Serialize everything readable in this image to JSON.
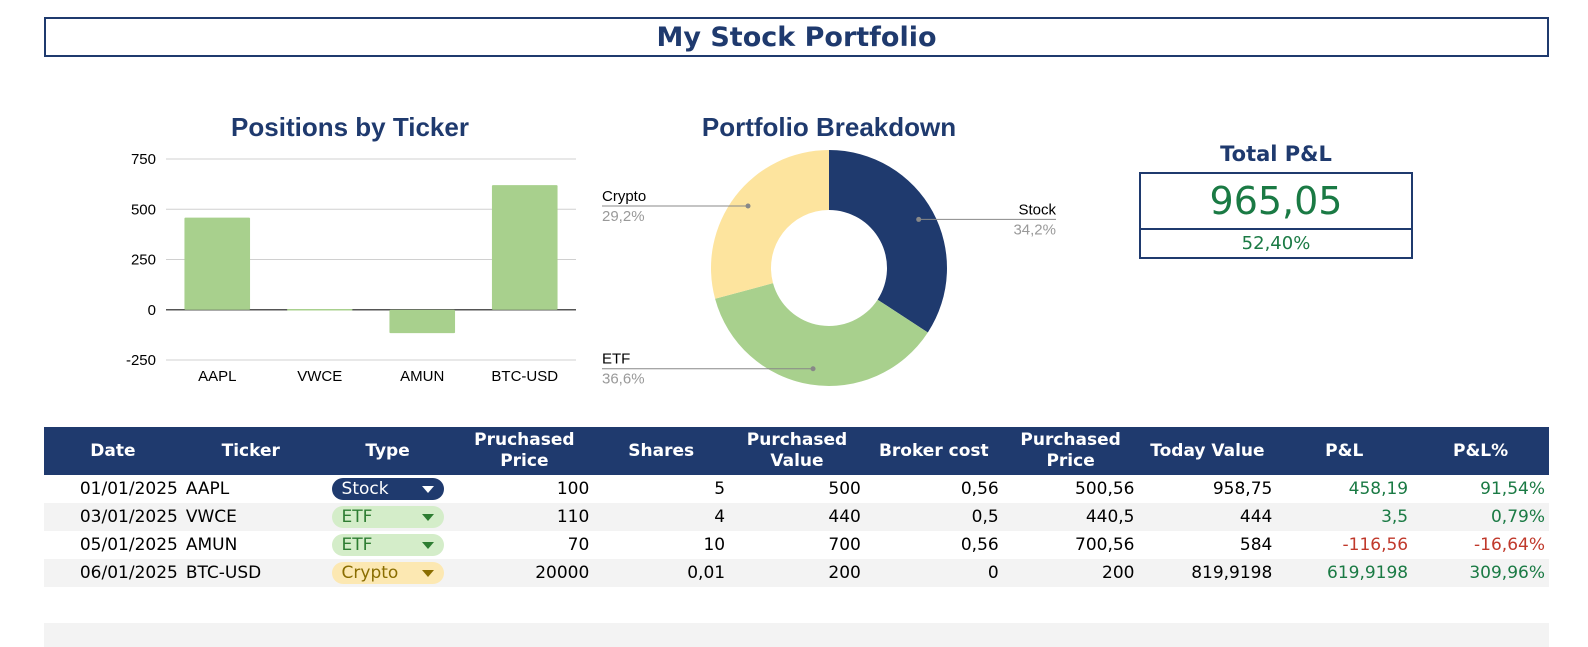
{
  "page": {
    "title": "My Stock Portfolio"
  },
  "total_pnl": {
    "title": "Total P&L",
    "value": "965,05",
    "percent": "52,40%"
  },
  "table": {
    "headers": [
      "Date",
      "Ticker",
      "Type",
      "Pruchased Price",
      "Shares",
      "Purchased Value",
      "Broker cost",
      "Purchased Price",
      "Today Value",
      "P&L",
      "P&L%"
    ],
    "rows": [
      {
        "date": "01/01/2025",
        "ticker": "AAPL",
        "type": "Stock",
        "price": "100",
        "shares": "5",
        "purchased_value": "500",
        "broker_cost": "0,56",
        "purchased_price_total": "500,56",
        "today_value": "958,75",
        "pnl": "458,19",
        "pnl_pct": "91,54%",
        "pnl_sign": "pos"
      },
      {
        "date": "03/01/2025",
        "ticker": "VWCE",
        "type": "ETF",
        "price": "110",
        "shares": "4",
        "purchased_value": "440",
        "broker_cost": "0,5",
        "purchased_price_total": "440,5",
        "today_value": "444",
        "pnl": "3,5",
        "pnl_pct": "0,79%",
        "pnl_sign": "pos"
      },
      {
        "date": "05/01/2025",
        "ticker": "AMUN",
        "type": "ETF",
        "price": "70",
        "shares": "10",
        "purchased_value": "700",
        "broker_cost": "0,56",
        "purchased_price_total": "700,56",
        "today_value": "584",
        "pnl": "-116,56",
        "pnl_pct": "-16,64%",
        "pnl_sign": "neg"
      },
      {
        "date": "06/01/2025",
        "ticker": "BTC-USD",
        "type": "Crypto",
        "price": "20000",
        "shares": "0,01",
        "purchased_value": "200",
        "broker_cost": "0",
        "purchased_price_total": "200",
        "today_value": "819,9198",
        "pnl": "619,9198",
        "pnl_pct": "309,96%",
        "pnl_sign": "pos"
      }
    ]
  },
  "colors": {
    "navy": "#1f3a6e",
    "bar_green": "#a8d08d",
    "pie_stock": "#1f3a6e",
    "pie_etf": "#a8d08d",
    "pie_crypto": "#fde49e",
    "positive": "#1a7a44",
    "negative": "#c0392b"
  },
  "chart_data": [
    {
      "type": "bar",
      "title": "Positions by Ticker",
      "categories": [
        "AAPL",
        "VWCE",
        "AMUN",
        "BTC-USD"
      ],
      "values": [
        458.19,
        3.5,
        -116.56,
        619.92
      ],
      "ylim": [
        -250,
        750
      ],
      "yticks": [
        750,
        500,
        250,
        0,
        -250
      ],
      "ytick_labels": [
        "750",
        "500",
        "250",
        "0",
        "-250"
      ],
      "grid": true,
      "legend": "none"
    },
    {
      "type": "pie",
      "title": "Portfolio Breakdown",
      "donut": true,
      "slices": [
        {
          "label": "Stock",
          "value": 34.2,
          "pct_label": "34,2%"
        },
        {
          "label": "ETF",
          "value": 36.6,
          "pct_label": "36,6%"
        },
        {
          "label": "Crypto",
          "value": 29.2,
          "pct_label": "29,2%"
        }
      ]
    }
  ]
}
